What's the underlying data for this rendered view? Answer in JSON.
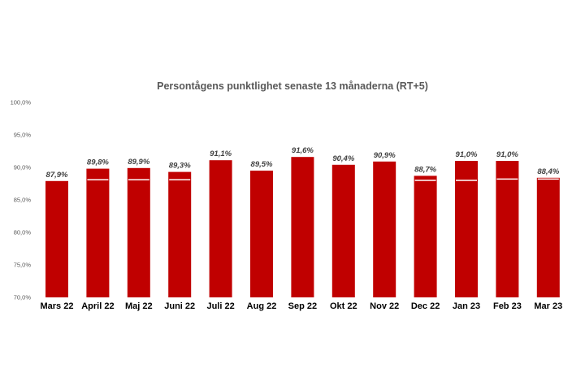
{
  "chart_data": {
    "type": "bar",
    "title": "Persontågens punktlighet senaste 13 månaderna (RT+5)",
    "xlabel": "",
    "ylabel": "",
    "ylim": [
      70,
      100
    ],
    "yticks": [
      70,
      75,
      80,
      85,
      90,
      95,
      100
    ],
    "ytick_labels": [
      "70,0%",
      "75,0%",
      "80,0%",
      "85,0%",
      "90,0%",
      "95,0%",
      "100,0%"
    ],
    "categories": [
      "Mars 22",
      "April 22",
      "Maj 22",
      "Juni 22",
      "Juli 22",
      "Aug 22",
      "Sep 22",
      "Okt 22",
      "Nov 22",
      "Dec 22",
      "Jan 23",
      "Feb 23",
      "Mar 23"
    ],
    "values": [
      87.9,
      89.8,
      89.9,
      89.3,
      91.1,
      89.5,
      91.6,
      90.4,
      90.9,
      88.7,
      91.0,
      91.0,
      88.4
    ],
    "value_labels": [
      "87,9%",
      "89,8%",
      "89,9%",
      "89,3%",
      "91,1%",
      "89,5%",
      "91,6%",
      "90,4%",
      "90,9%",
      "88,7%",
      "91,0%",
      "91,0%",
      "88,4%"
    ],
    "reference_marks": [
      null,
      88.1,
      88.1,
      88.1,
      null,
      null,
      null,
      null,
      null,
      88.0,
      88.0,
      88.2,
      88.2
    ],
    "grid": false,
    "legend": "none",
    "bar_color": "#C00000",
    "mark_color": "#FFFFFF"
  }
}
